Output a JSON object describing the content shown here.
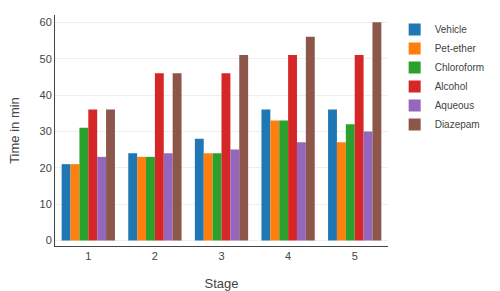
{
  "chart_data": {
    "type": "bar",
    "xlabel": "Stage",
    "ylabel": "Time in min",
    "categories": [
      "1",
      "2",
      "3",
      "4",
      "5"
    ],
    "series": [
      {
        "name": "Vehicle",
        "values": [
          21,
          24,
          28,
          36,
          36
        ]
      },
      {
        "name": "Pet-ether",
        "values": [
          21,
          23,
          24,
          33,
          27
        ]
      },
      {
        "name": "Chloroform",
        "values": [
          31,
          23,
          24,
          33,
          32
        ]
      },
      {
        "name": "Alcohol",
        "values": [
          36,
          46,
          46,
          51,
          51
        ]
      },
      {
        "name": "Aqueous",
        "values": [
          23,
          24,
          25,
          27,
          30
        ]
      },
      {
        "name": "Diazepam",
        "values": [
          36,
          46,
          51,
          56,
          60
        ]
      }
    ],
    "ylim": [
      -1.5,
      62
    ],
    "yticks": [
      0,
      10,
      20,
      30,
      40,
      50,
      60
    ],
    "grid": true,
    "legend": "right"
  }
}
